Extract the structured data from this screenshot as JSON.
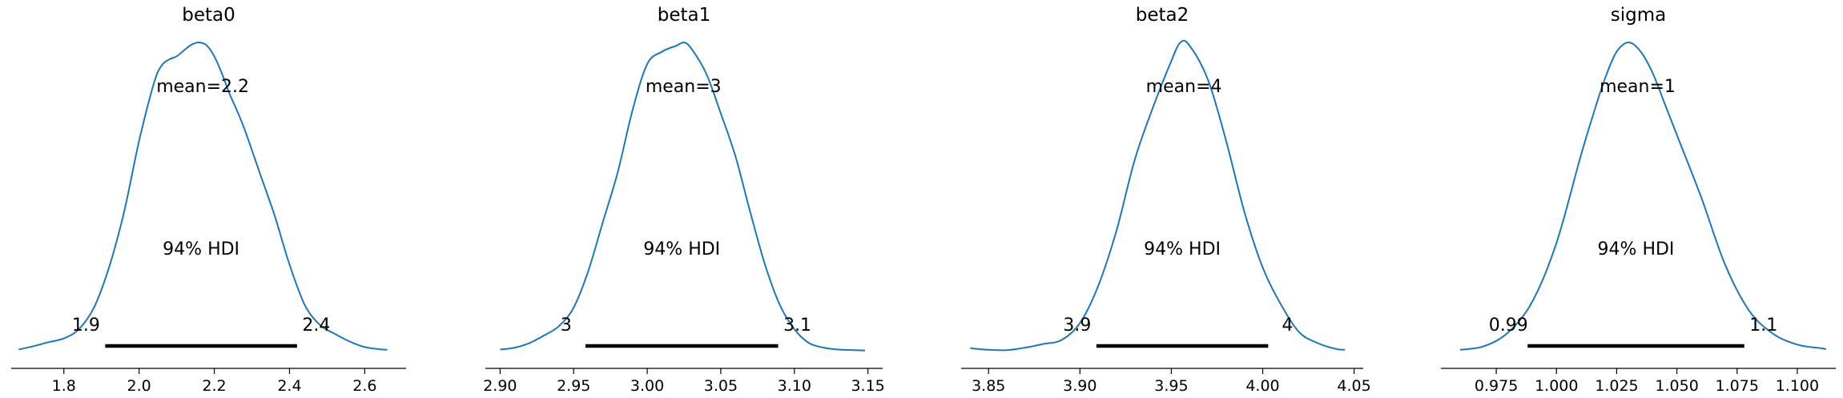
{
  "chart_data": [
    {
      "type": "line",
      "title": "beta0",
      "xlim": [
        1.66,
        2.71
      ],
      "ticks": [
        1.8,
        2.0,
        2.2,
        2.4,
        2.6
      ],
      "tick_labels": [
        "1.8",
        "2.0",
        "2.2",
        "2.4",
        "2.6"
      ],
      "mean_label": "mean=2.2",
      "hdi_label": "94% HDI",
      "hdi": [
        1.91,
        2.42
      ],
      "hdi_low_label": "1.9",
      "hdi_high_label": "2.4",
      "density": {
        "x": [
          1.68,
          1.72,
          1.76,
          1.8,
          1.84,
          1.88,
          1.92,
          1.96,
          2.0,
          2.04,
          2.06,
          2.08,
          2.1,
          2.12,
          2.14,
          2.16,
          2.18,
          2.2,
          2.22,
          2.24,
          2.26,
          2.28,
          2.32,
          2.36,
          2.4,
          2.44,
          2.48,
          2.52,
          2.56,
          2.6,
          2.64,
          2.66
        ],
        "y": [
          0.004,
          0.015,
          0.028,
          0.04,
          0.07,
          0.14,
          0.27,
          0.45,
          0.68,
          0.87,
          0.925,
          0.945,
          0.955,
          0.975,
          0.993,
          1.0,
          0.99,
          0.955,
          0.9,
          0.835,
          0.78,
          0.72,
          0.58,
          0.44,
          0.28,
          0.15,
          0.085,
          0.055,
          0.03,
          0.012,
          0.005,
          0.003
        ]
      }
    },
    {
      "type": "line",
      "title": "beta1",
      "xlim": [
        2.89,
        3.16
      ],
      "ticks": [
        2.9,
        2.95,
        3.0,
        3.05,
        3.1,
        3.15
      ],
      "tick_labels": [
        "2.90",
        "2.95",
        "3.00",
        "3.05",
        "3.10",
        "3.15"
      ],
      "mean_label": "mean=3",
      "hdi_label": "94% HDI",
      "hdi": [
        2.958,
        3.089
      ],
      "hdi_low_label": "3",
      "hdi_high_label": "3.1",
      "density": {
        "x": [
          2.9,
          2.91,
          2.92,
          2.93,
          2.94,
          2.95,
          2.96,
          2.97,
          2.98,
          2.99,
          3.0,
          3.01,
          3.02,
          3.025,
          3.03,
          3.04,
          3.05,
          3.06,
          3.07,
          3.08,
          3.09,
          3.1,
          3.11,
          3.12,
          3.13,
          3.14,
          3.148
        ],
        "y": [
          0.004,
          0.01,
          0.025,
          0.05,
          0.08,
          0.14,
          0.26,
          0.42,
          0.58,
          0.78,
          0.93,
          0.97,
          0.99,
          1.0,
          0.98,
          0.9,
          0.77,
          0.63,
          0.45,
          0.28,
          0.15,
          0.07,
          0.025,
          0.01,
          0.004,
          0.002,
          0.001
        ]
      }
    },
    {
      "type": "line",
      "title": "beta2",
      "xlim": [
        3.835,
        4.055
      ],
      "ticks": [
        3.85,
        3.9,
        3.95,
        4.0,
        4.05
      ],
      "tick_labels": [
        "3.85",
        "3.90",
        "3.95",
        "4.00",
        "4.05"
      ],
      "mean_label": "mean=4",
      "hdi_label": "94% HDI",
      "hdi": [
        3.909,
        4.003
      ],
      "hdi_low_label": "3.9",
      "hdi_high_label": "4",
      "density": {
        "x": [
          3.84,
          3.85,
          3.86,
          3.87,
          3.88,
          3.89,
          3.9,
          3.91,
          3.92,
          3.93,
          3.94,
          3.95,
          3.955,
          3.96,
          3.97,
          3.98,
          3.99,
          4.0,
          4.01,
          4.02,
          4.03,
          4.04,
          4.045
        ],
        "y": [
          0.008,
          0.003,
          0.002,
          0.01,
          0.022,
          0.035,
          0.09,
          0.21,
          0.39,
          0.62,
          0.79,
          0.94,
          1.0,
          0.99,
          0.88,
          0.68,
          0.45,
          0.27,
          0.15,
          0.06,
          0.025,
          0.006,
          0.003
        ]
      }
    },
    {
      "type": "line",
      "title": "sigma",
      "xlim": [
        0.952,
        1.116
      ],
      "ticks": [
        0.975,
        1.0,
        1.025,
        1.05,
        1.075,
        1.1
      ],
      "tick_labels": [
        "0.975",
        "1.000",
        "1.025",
        "1.050",
        "1.075",
        "1.100"
      ],
      "mean_label": "mean=1",
      "hdi_label": "94% HDI",
      "hdi": [
        0.988,
        1.078
      ],
      "hdi_low_label": "0.99",
      "hdi_high_label": "1.1",
      "density": {
        "x": [
          0.96,
          0.97,
          0.98,
          0.99,
          1.0,
          1.01,
          1.015,
          1.02,
          1.025,
          1.03,
          1.035,
          1.04,
          1.045,
          1.05,
          1.06,
          1.07,
          1.08,
          1.09,
          1.1,
          1.11,
          1.112
        ],
        "y": [
          0.003,
          0.015,
          0.06,
          0.16,
          0.35,
          0.63,
          0.76,
          0.88,
          0.97,
          1.0,
          0.97,
          0.9,
          0.8,
          0.7,
          0.5,
          0.28,
          0.13,
          0.055,
          0.02,
          0.008,
          0.005
        ]
      }
    }
  ]
}
